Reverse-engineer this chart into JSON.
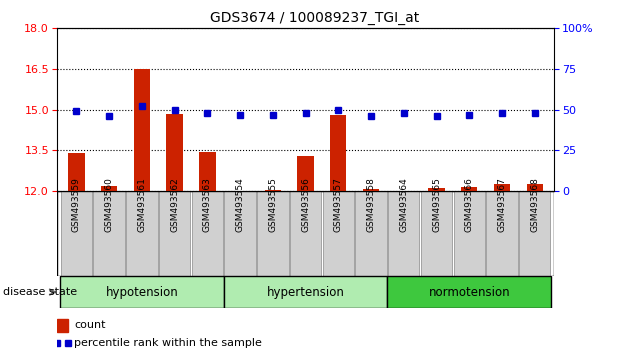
{
  "title": "GDS3674 / 100089237_TGI_at",
  "samples": [
    "GSM493559",
    "GSM493560",
    "GSM493561",
    "GSM493562",
    "GSM493563",
    "GSM493554",
    "GSM493555",
    "GSM493556",
    "GSM493557",
    "GSM493558",
    "GSM493564",
    "GSM493565",
    "GSM493566",
    "GSM493567",
    "GSM493568"
  ],
  "count_values": [
    13.4,
    12.2,
    16.5,
    14.85,
    13.45,
    12.02,
    12.05,
    13.3,
    14.8,
    12.08,
    12.02,
    12.12,
    12.15,
    12.28,
    12.28
  ],
  "percentile_values": [
    49,
    46,
    52,
    50,
    48,
    47,
    47,
    48,
    50,
    46,
    48,
    46,
    47,
    48,
    48
  ],
  "groups": [
    {
      "label": "hypotension",
      "start": 0,
      "end": 5,
      "color": "#b0ecb0"
    },
    {
      "label": "hypertension",
      "start": 5,
      "end": 10,
      "color": "#b0ecb0"
    },
    {
      "label": "normotension",
      "start": 10,
      "end": 15,
      "color": "#3ec83e"
    }
  ],
  "ylim_left": [
    12,
    18
  ],
  "ylim_right": [
    0,
    100
  ],
  "yticks_left": [
    12,
    13.5,
    15,
    16.5,
    18
  ],
  "yticks_right": [
    0,
    25,
    50,
    75,
    100
  ],
  "bar_color": "#cc2200",
  "marker_color": "#0000cc",
  "background_color": "#ffffff",
  "legend_count_label": "count",
  "legend_percentile_label": "percentile rank within the sample",
  "tick_bg_color": "#d0d0d0"
}
